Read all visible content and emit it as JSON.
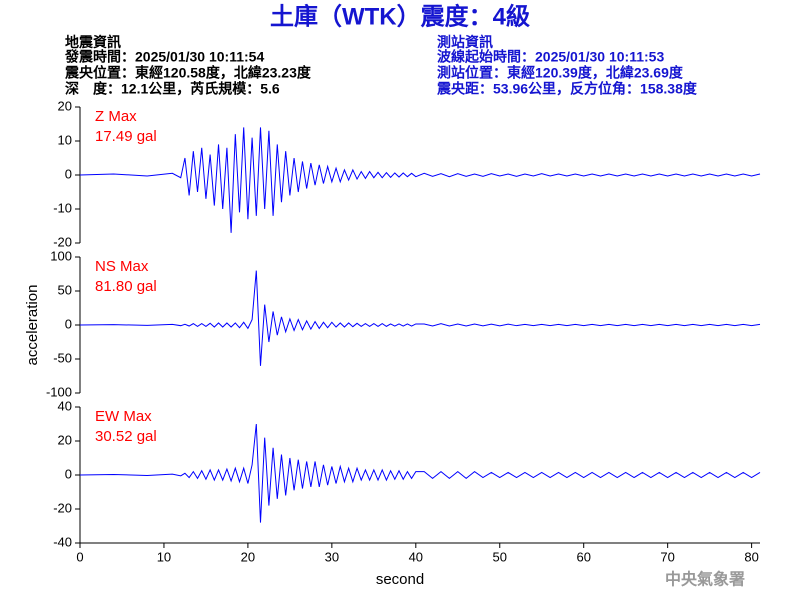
{
  "header": {
    "title": "土庫（WTK）震度：4級",
    "left": [
      "地震資訊",
      "發震時間：2025/01/30 10:11:54",
      "震央位置：東經120.58度，北緯23.23度",
      "深　度：12.1公里，芮氏規模：5.6"
    ],
    "right": [
      "測站資訊",
      "波線起始時間：2025/01/30 10:11:53",
      "測站位置：東經120.39度，北緯23.69度",
      "震央距：53.96公里，反方位角：158.38度"
    ],
    "footer": "中央氣象署"
  },
  "chart_data": [
    {
      "type": "line",
      "annotations": [
        "Z Max",
        "17.49 gal"
      ],
      "color": "#0000ff",
      "annotation_color": "#ff0000",
      "xlim": [
        0,
        81
      ],
      "ylim": [
        -20,
        20
      ],
      "yticks": [
        -20,
        -10,
        0,
        10,
        20
      ],
      "x": [
        0,
        4,
        8,
        11,
        12,
        12.5,
        13,
        13.5,
        14,
        14.5,
        15,
        15.5,
        16,
        16.5,
        17,
        17.5,
        18,
        18.5,
        19,
        19.5,
        20,
        20.5,
        21,
        21.5,
        22,
        22.5,
        23,
        23.5,
        24,
        24.5,
        25,
        25.5,
        26,
        26.5,
        27,
        27.5,
        28,
        28.5,
        29,
        29.5,
        30,
        30.5,
        31,
        31.5,
        32,
        32.5,
        33,
        33.5,
        34,
        34.5,
        35,
        35.5,
        36,
        36.5,
        37,
        37.5,
        38,
        38.5,
        39,
        39.5,
        40,
        41,
        42,
        43,
        44,
        45,
        46,
        47,
        48,
        49,
        50,
        51,
        52,
        53,
        54,
        55,
        56,
        57,
        58,
        59,
        60,
        61,
        62,
        63,
        64,
        65,
        66,
        67,
        68,
        69,
        70,
        71,
        72,
        73,
        74,
        75,
        76,
        77,
        78,
        79,
        80,
        81
      ],
      "values": [
        0,
        0.3,
        -0.3,
        0.5,
        -0.8,
        5,
        -6,
        7,
        -5,
        8,
        -7,
        6,
        -9,
        9,
        -10,
        8,
        -17,
        12,
        -11,
        14,
        -13,
        11,
        -12,
        14,
        -10,
        13,
        -12,
        9,
        -8,
        7,
        -6,
        5,
        -5,
        4,
        -4,
        3.5,
        -3,
        3,
        -2.5,
        2.5,
        -2,
        2,
        -2,
        1.5,
        -1.5,
        1.5,
        -1.2,
        1,
        -1,
        1,
        -0.8,
        0.8,
        -0.8,
        0.7,
        -0.7,
        0.6,
        -0.6,
        0.6,
        -0.5,
        0.5,
        -0.5,
        0.5,
        -0.4,
        0.4,
        -0.5,
        0.4,
        -0.4,
        0.3,
        -0.4,
        0.4,
        -0.3,
        0.3,
        -0.4,
        0.3,
        -0.3,
        0.4,
        -0.3,
        0.3,
        -0.3,
        0.3,
        -0.3,
        0.3,
        -0.3,
        0.3,
        -0.3,
        0.3,
        -0.3,
        0.3,
        -0.3,
        0.3,
        -0.3,
        0.3,
        -0.3,
        0.3,
        -0.3,
        0.3,
        -0.3,
        0.3,
        -0.3,
        0.3,
        -0.3,
        0.3
      ]
    },
    {
      "type": "line",
      "annotations": [
        "NS Max",
        "81.80 gal"
      ],
      "color": "#0000ff",
      "annotation_color": "#ff0000",
      "ylabel": "acceleration",
      "xlim": [
        0,
        81
      ],
      "ylim": [
        -100,
        100
      ],
      "yticks": [
        -100,
        -50,
        0,
        50,
        100
      ],
      "x": [
        0,
        4,
        8,
        11,
        12,
        12.5,
        13,
        13.5,
        14,
        14.5,
        15,
        15.5,
        16,
        16.5,
        17,
        17.5,
        18,
        18.5,
        19,
        19.5,
        20,
        20.5,
        21,
        21.5,
        22,
        22.5,
        23,
        23.5,
        24,
        24.5,
        25,
        25.5,
        26,
        26.5,
        27,
        27.5,
        28,
        28.5,
        29,
        29.5,
        30,
        30.5,
        31,
        31.5,
        32,
        32.5,
        33,
        33.5,
        34,
        34.5,
        35,
        35.5,
        36,
        36.5,
        37,
        37.5,
        38,
        38.5,
        39,
        39.5,
        40,
        41,
        42,
        43,
        44,
        45,
        46,
        47,
        48,
        49,
        50,
        51,
        52,
        53,
        54,
        55,
        56,
        57,
        58,
        59,
        60,
        61,
        62,
        63,
        64,
        65,
        66,
        67,
        68,
        69,
        70,
        71,
        72,
        73,
        74,
        75,
        76,
        77,
        78,
        79,
        80,
        81
      ],
      "values": [
        0,
        0.5,
        -0.5,
        1,
        -1,
        1,
        -1.5,
        2,
        -2,
        2,
        -2,
        2.5,
        -3,
        3,
        -3,
        3,
        -3,
        3,
        -4,
        4,
        -5,
        8,
        80,
        -60,
        30,
        -25,
        20,
        -15,
        12,
        -10,
        9,
        -8,
        8,
        -7,
        6,
        -6,
        5,
        -5,
        4,
        -4,
        4,
        -3,
        3,
        -3,
        3,
        -2.5,
        2.5,
        -2,
        2,
        -2,
        2,
        -2,
        2,
        -2,
        1.5,
        -1.5,
        1.5,
        -1.5,
        1.5,
        -1.5,
        1.5,
        1.5,
        -1.5,
        2,
        -1.5,
        1.5,
        -1.5,
        1.5,
        -1.2,
        1.2,
        -1.2,
        1.2,
        -1,
        1,
        -1,
        1,
        -1,
        1,
        -1,
        1,
        -1,
        1,
        -1,
        1,
        -1,
        1,
        -1,
        1,
        -1,
        1,
        -1,
        1,
        -1,
        1,
        -1,
        1,
        -1,
        1,
        -1,
        1,
        -1,
        1
      ]
    },
    {
      "type": "line",
      "annotations": [
        "EW Max",
        "30.52 gal"
      ],
      "color": "#0000ff",
      "annotation_color": "#ff0000",
      "xlabel": "second",
      "xlim": [
        0,
        81
      ],
      "ylim": [
        -40,
        40
      ],
      "yticks": [
        -40,
        -20,
        0,
        20,
        40
      ],
      "xticks": [
        0,
        10,
        20,
        30,
        40,
        50,
        60,
        70,
        80
      ],
      "x": [
        0,
        4,
        8,
        11,
        12,
        12.5,
        13,
        13.5,
        14,
        14.5,
        15,
        15.5,
        16,
        16.5,
        17,
        17.5,
        18,
        18.5,
        19,
        19.5,
        20,
        20.5,
        21,
        21.5,
        22,
        22.5,
        23,
        23.5,
        24,
        24.5,
        25,
        25.5,
        26,
        26.5,
        27,
        27.5,
        28,
        28.5,
        29,
        29.5,
        30,
        30.5,
        31,
        31.5,
        32,
        32.5,
        33,
        33.5,
        34,
        34.5,
        35,
        35.5,
        36,
        36.5,
        37,
        37.5,
        38,
        38.5,
        39,
        39.5,
        40,
        41,
        42,
        43,
        44,
        45,
        46,
        47,
        48,
        49,
        50,
        51,
        52,
        53,
        54,
        55,
        56,
        57,
        58,
        59,
        60,
        61,
        62,
        63,
        64,
        65,
        66,
        67,
        68,
        69,
        70,
        71,
        72,
        73,
        74,
        75,
        76,
        77,
        78,
        79,
        80,
        81
      ],
      "values": [
        0,
        0.3,
        -0.3,
        0.5,
        -0.5,
        1,
        -1.5,
        2,
        -2,
        2.5,
        -2.5,
        3,
        -3,
        3,
        -3,
        3.5,
        -3.5,
        4,
        -4,
        4,
        -5,
        6,
        30,
        -28,
        22,
        -18,
        16,
        -14,
        12,
        -12,
        10,
        -9,
        9,
        -8,
        8,
        -7,
        8,
        -7,
        6,
        -6,
        5,
        -5,
        5,
        -4,
        4,
        -4,
        4,
        -3,
        3,
        -3,
        3,
        -3,
        3,
        -3,
        2.5,
        -2.5,
        2.5,
        -2.5,
        2,
        -2,
        2,
        2,
        -2,
        2,
        -2,
        2,
        -2,
        2,
        -1.5,
        1.5,
        -1.5,
        1.5,
        -1.5,
        1.5,
        -1.5,
        1.5,
        -1.5,
        1.5,
        -1.5,
        1.5,
        -1.5,
        1.5,
        -1.5,
        1.5,
        -1.5,
        1.5,
        -1.5,
        1.5,
        -1.5,
        1.5,
        -1.5,
        1.5,
        -1.5,
        1.5,
        -1.5,
        1.5,
        -1.5,
        1.5,
        -1.5,
        1.5,
        -1.5,
        1.5
      ]
    }
  ]
}
